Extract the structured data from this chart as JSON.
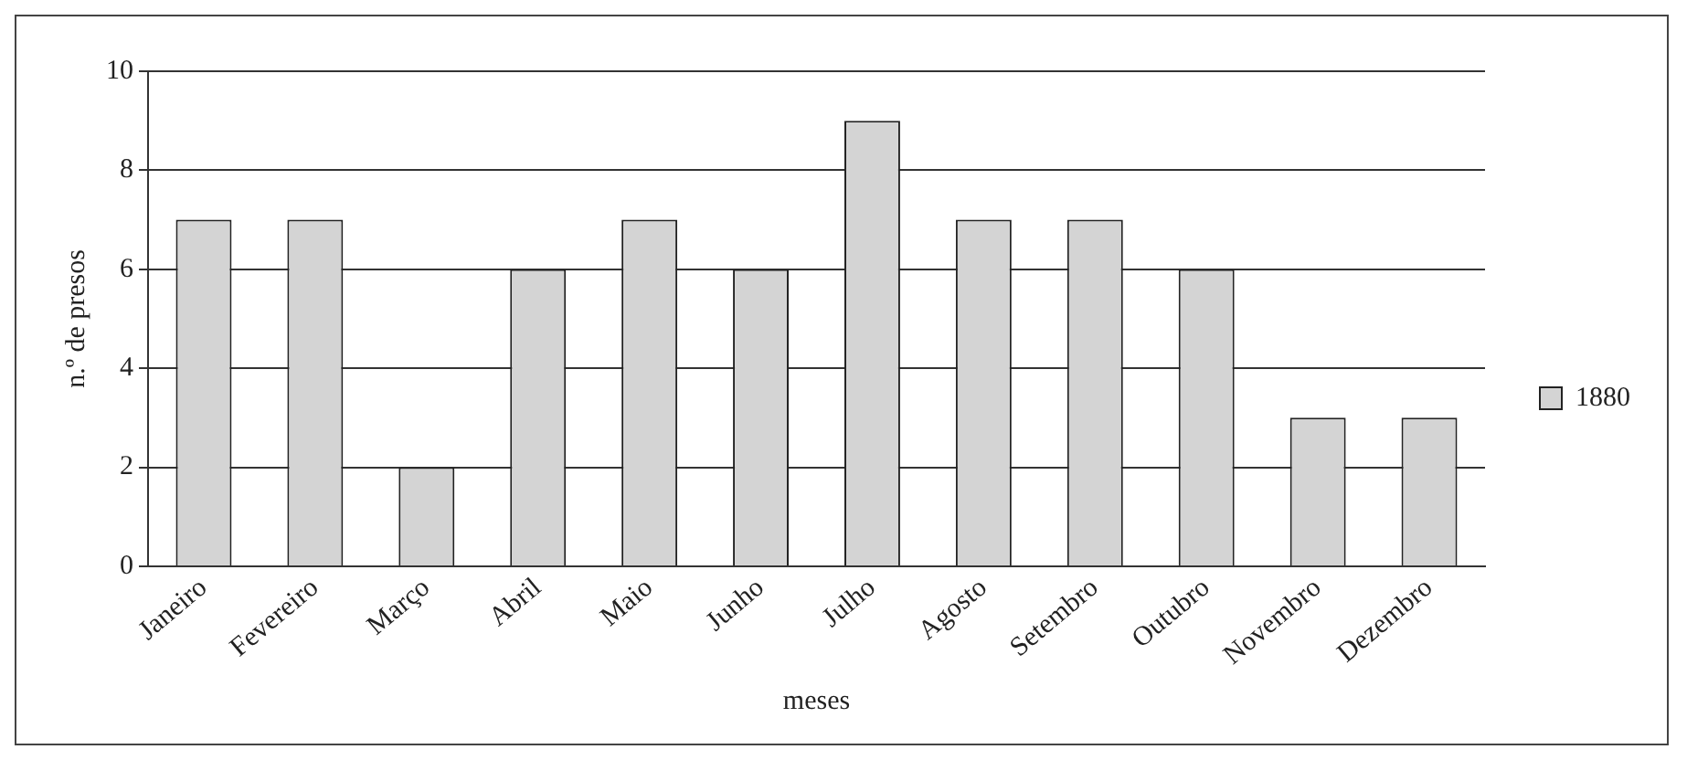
{
  "chart_data": {
    "type": "bar",
    "xlabel": "meses",
    "ylabel": "n.º de presos",
    "categories": [
      "Janeiro",
      "Fevereiro",
      "Março",
      "Abril",
      "Maio",
      "Junho",
      "Julho",
      "Agosto",
      "Setembro",
      "Outubro",
      "Novembro",
      "Dezembro"
    ],
    "series": [
      {
        "name": "1880",
        "color": "#d4d4d4",
        "values": [
          7,
          7,
          2,
          6,
          7,
          6,
          9,
          7,
          7,
          6,
          3,
          3
        ]
      }
    ],
    "ylim": [
      0,
      10
    ],
    "yticks": [
      0,
      2,
      4,
      6,
      8,
      10
    ],
    "grid": "y",
    "legend": "right"
  }
}
